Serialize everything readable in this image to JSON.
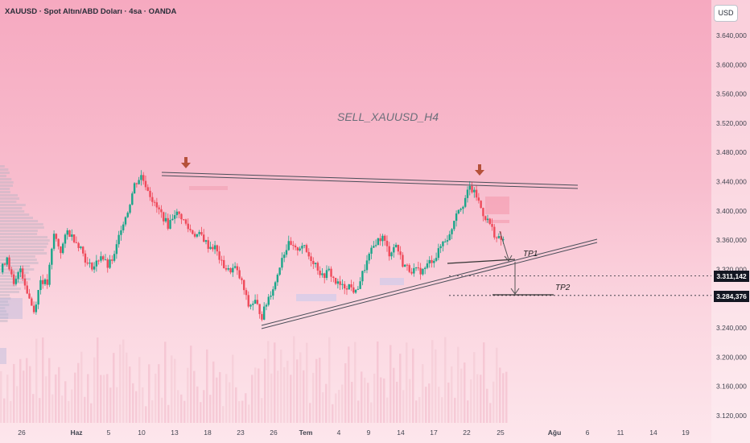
{
  "header": {
    "symbol": "XAUUSD · Spot Altın/ABD Doları · 4sa · OANDA",
    "currency": "USD"
  },
  "colors": {
    "up": "#1aa68a",
    "down": "#ef4a5a",
    "trendline": "#4a4e59",
    "arrow": "#b5513a",
    "price_tag": "#131722"
  },
  "chart_data": {
    "type": "candlestick",
    "title": "SELL_XAUUSD_H4",
    "y_axis": {
      "ticks": [
        3640,
        3600,
        3560,
        3520,
        3480,
        3440,
        3400,
        3360,
        3320,
        3280,
        3240,
        3200,
        3160,
        3120
      ],
      "tick_labels": [
        "3.640,000",
        "3.600,000",
        "3.560,000",
        "3.520,000",
        "3.480,000",
        "3.440,000",
        "3.400,000",
        "3.360,000",
        "3.320,000",
        "3.280,000",
        "3.240,000",
        "3.200,000",
        "3.160,000",
        "3.120,000"
      ],
      "ylim": [
        3112,
        3672
      ]
    },
    "x_axis": {
      "tick_labels": [
        "26",
        "Haz",
        "5",
        "10",
        "13",
        "18",
        "23",
        "26",
        "Tem",
        "4",
        "9",
        "14",
        "17",
        "22",
        "25",
        "Ağu",
        "6",
        "11",
        "14",
        "19"
      ]
    },
    "price_levels": [
      {
        "label": "3.311,142",
        "value": 3311.142
      },
      {
        "label": "3.284,376",
        "value": 3284.376
      }
    ],
    "targets": [
      {
        "label": "TP1",
        "value": 3327
      },
      {
        "label": "TP2",
        "value": 3285
      }
    ],
    "close_path": [
      3316,
      3338,
      3296,
      3322,
      3290,
      3262,
      3306,
      3300,
      3368,
      3345,
      3372,
      3362,
      3350,
      3326,
      3324,
      3340,
      3324,
      3338,
      3378,
      3400,
      3436,
      3448,
      3430,
      3408,
      3396,
      3380,
      3398,
      3392,
      3376,
      3368,
      3366,
      3352,
      3350,
      3328,
      3318,
      3322,
      3302,
      3270,
      3276,
      3256,
      3282,
      3302,
      3338,
      3354,
      3346,
      3354,
      3338,
      3328,
      3310,
      3318,
      3302,
      3296,
      3298,
      3288,
      3314,
      3338,
      3358,
      3364,
      3342,
      3354,
      3328,
      3320,
      3318,
      3318,
      3330,
      3338,
      3358,
      3366,
      3400,
      3410,
      3432,
      3420,
      3396,
      3382,
      3362,
      3360
    ]
  }
}
